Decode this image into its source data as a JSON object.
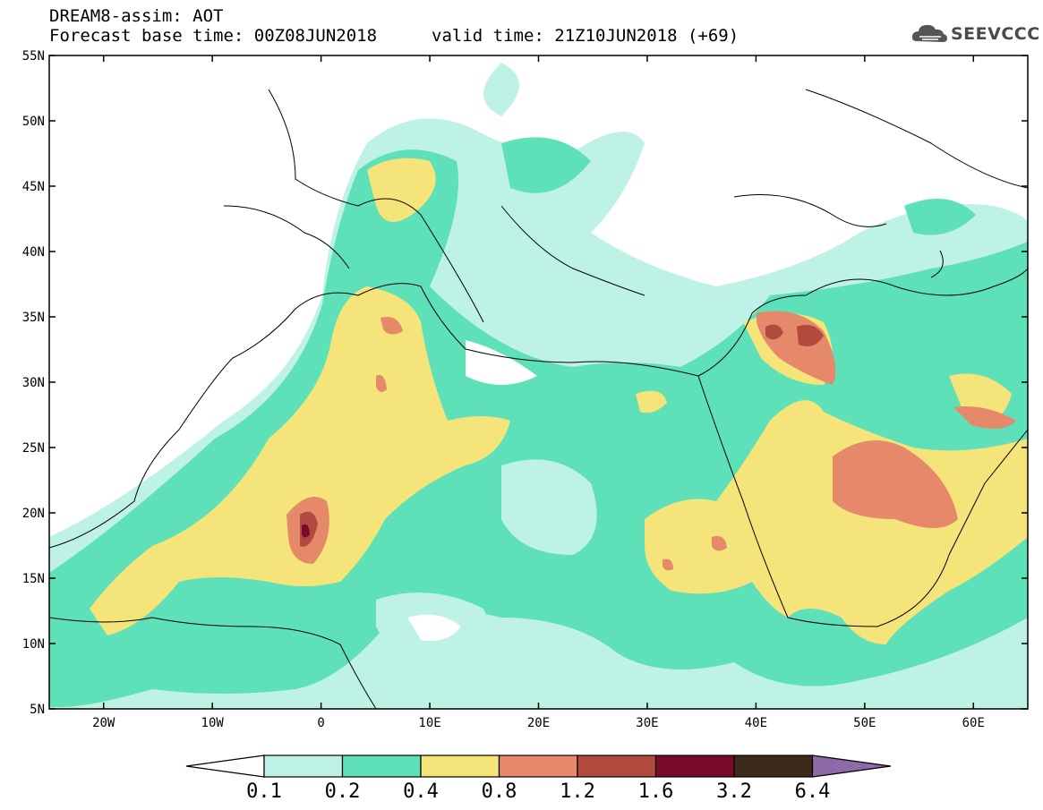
{
  "header": {
    "title": "DREAM8-assim: AOT",
    "base_time": "Forecast base time: 00Z08JUN2018",
    "valid_time": "valid time: 21Z10JUN2018 (+69)",
    "logo_text": "SEEVCCC",
    "logo_icon": "cloud-icon"
  },
  "map": {
    "lon_range": [
      -25,
      65
    ],
    "lat_range": [
      5,
      55
    ],
    "lat_ticks": [
      {
        "value": 55,
        "label": "55N"
      },
      {
        "value": 50,
        "label": "50N"
      },
      {
        "value": 45,
        "label": "45N"
      },
      {
        "value": 40,
        "label": "40N"
      },
      {
        "value": 35,
        "label": "35N"
      },
      {
        "value": 30,
        "label": "30N"
      },
      {
        "value": 25,
        "label": "25N"
      },
      {
        "value": 20,
        "label": "20N"
      },
      {
        "value": 15,
        "label": "15N"
      },
      {
        "value": 10,
        "label": "10N"
      },
      {
        "value": 5,
        "label": "5N"
      }
    ],
    "lon_ticks": [
      {
        "value": -20,
        "label": "20W"
      },
      {
        "value": -10,
        "label": "10W"
      },
      {
        "value": 0,
        "label": "0"
      },
      {
        "value": 10,
        "label": "10E"
      },
      {
        "value": 20,
        "label": "20E"
      },
      {
        "value": 30,
        "label": "30E"
      },
      {
        "value": 40,
        "label": "40E"
      },
      {
        "value": 50,
        "label": "50E"
      },
      {
        "value": 60,
        "label": "60E"
      }
    ]
  },
  "colorbar": {
    "levels": [
      "0.1",
      "0.2",
      "0.4",
      "0.8",
      "1.2",
      "1.6",
      "3.2",
      "6.4"
    ],
    "colors": [
      "#ffffff",
      "#bff2e6",
      "#5ee0b8",
      "#f5e47a",
      "#e6896a",
      "#b24a3f",
      "#7a0a2a",
      "#3d2a1a",
      "#8e6aa8"
    ]
  }
}
